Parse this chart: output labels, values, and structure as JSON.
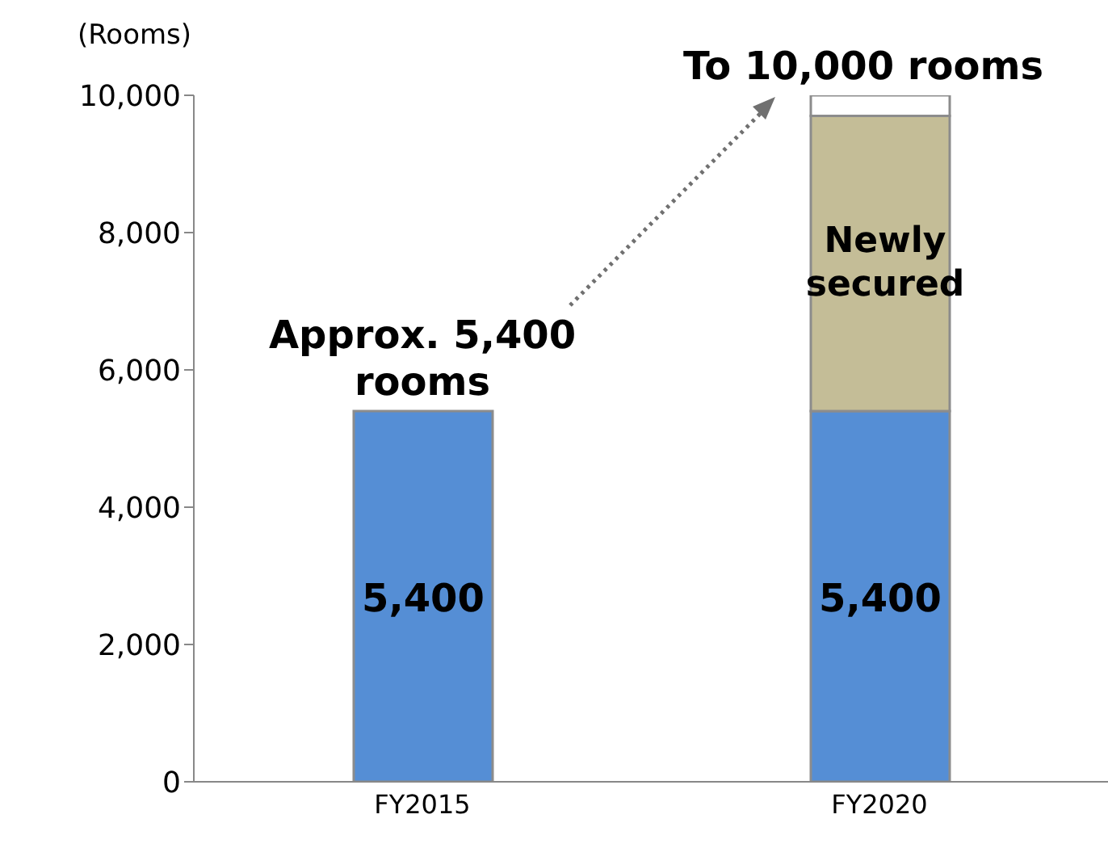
{
  "chart_data": {
    "type": "bar",
    "stacked": true,
    "ylabel": "(Rooms)",
    "categories": [
      "FY2015",
      "FY2020"
    ],
    "series": [
      {
        "color": "#558ed5",
        "values": [
          5400,
          5400
        ],
        "value_labels": [
          "5,400",
          "5,400"
        ]
      },
      {
        "color": "#c4bd97",
        "values": [
          null,
          4300
        ]
      },
      {
        "color": "#ffffff",
        "values": [
          null,
          300
        ]
      }
    ],
    "ylim": [
      0,
      10000
    ],
    "yticks": [
      {
        "value": 0,
        "label": "0"
      },
      {
        "value": 2000,
        "label": "2,000"
      },
      {
        "value": 4000,
        "label": "4,000"
      },
      {
        "value": 6000,
        "label": "6,000"
      },
      {
        "value": 8000,
        "label": "8,000"
      },
      {
        "value": 10000,
        "label": "10,000"
      }
    ],
    "annotations": [
      {
        "text": "Approx. 5,400 rooms",
        "x": "FY2015",
        "y": 5400
      },
      {
        "text": "To 10,000 rooms",
        "x": "FY2020",
        "y": 10000
      },
      "Newly secured"
    ],
    "grid": false,
    "legend": false
  }
}
